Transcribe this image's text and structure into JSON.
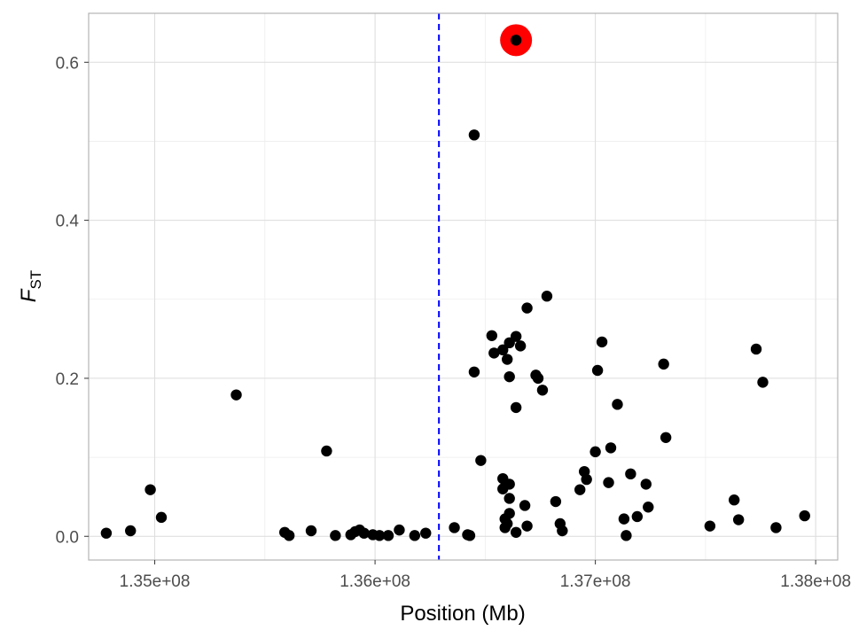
{
  "chart_data": {
    "type": "scatter",
    "xlabel": "Position (Mb)",
    "ylabel_main": "F",
    "ylabel_sub": "ST",
    "xlim": [
      134700000,
      138100000
    ],
    "ylim": [
      -0.03,
      0.662
    ],
    "x_ticks": [
      {
        "value": 135000000,
        "label": "1.35e+08"
      },
      {
        "value": 136000000,
        "label": "1.36e+08"
      },
      {
        "value": 137000000,
        "label": "1.37e+08"
      },
      {
        "value": 138000000,
        "label": "1.38e+08"
      }
    ],
    "y_ticks": [
      {
        "value": 0.0,
        "label": "0.0"
      },
      {
        "value": 0.2,
        "label": "0.2"
      },
      {
        "value": 0.4,
        "label": "0.4"
      },
      {
        "value": 0.6,
        "label": "0.6"
      }
    ],
    "grid": true,
    "vline": {
      "x": 136290000,
      "color": "#0000ff",
      "style": "dashed"
    },
    "highlight": {
      "x": 136640000,
      "y": 0.628,
      "color": "#ff0000"
    },
    "point_color": "#000000",
    "points": [
      [
        134780000,
        0.004
      ],
      [
        134890000,
        0.007
      ],
      [
        134980000,
        0.059
      ],
      [
        135030000,
        0.024
      ],
      [
        135370000,
        0.179
      ],
      [
        135590000,
        0.005
      ],
      [
        135610000,
        0.001
      ],
      [
        135710000,
        0.007
      ],
      [
        135780000,
        0.108
      ],
      [
        135820000,
        0.001
      ],
      [
        135890000,
        0.002
      ],
      [
        135910000,
        0.006
      ],
      [
        135930000,
        0.008
      ],
      [
        135950000,
        0.004
      ],
      [
        135990000,
        0.002
      ],
      [
        136020000,
        0.001
      ],
      [
        136060000,
        0.001
      ],
      [
        136110000,
        0.008
      ],
      [
        136180000,
        0.001
      ],
      [
        136230000,
        0.004
      ],
      [
        136360000,
        0.011
      ],
      [
        136420000,
        0.002
      ],
      [
        136430000,
        0.001
      ],
      [
        136450000,
        0.508
      ],
      [
        136450000,
        0.208
      ],
      [
        136480000,
        0.096
      ],
      [
        136530000,
        0.254
      ],
      [
        136540000,
        0.232
      ],
      [
        136580000,
        0.236
      ],
      [
        136600000,
        0.224
      ],
      [
        136610000,
        0.245
      ],
      [
        136610000,
        0.202
      ],
      [
        136580000,
        0.073
      ],
      [
        136580000,
        0.06
      ],
      [
        136610000,
        0.066
      ],
      [
        136610000,
        0.048
      ],
      [
        136590000,
        0.022
      ],
      [
        136610000,
        0.029
      ],
      [
        136600000,
        0.016
      ],
      [
        136590000,
        0.011
      ],
      [
        136640000,
        0.253
      ],
      [
        136640000,
        0.163
      ],
      [
        136660000,
        0.241
      ],
      [
        136640000,
        0.005
      ],
      [
        136690000,
        0.289
      ],
      [
        136680000,
        0.039
      ],
      [
        136690000,
        0.013
      ],
      [
        136730000,
        0.204
      ],
      [
        136740000,
        0.2
      ],
      [
        136760000,
        0.185
      ],
      [
        136780000,
        0.304
      ],
      [
        136820000,
        0.044
      ],
      [
        136840000,
        0.016
      ],
      [
        136850000,
        0.007
      ],
      [
        136930000,
        0.059
      ],
      [
        136950000,
        0.082
      ],
      [
        136960000,
        0.072
      ],
      [
        137000000,
        0.107
      ],
      [
        137010000,
        0.21
      ],
      [
        137030000,
        0.246
      ],
      [
        137060000,
        0.068
      ],
      [
        137070000,
        0.112
      ],
      [
        137100000,
        0.167
      ],
      [
        137130000,
        0.022
      ],
      [
        137140000,
        0.001
      ],
      [
        137160000,
        0.079
      ],
      [
        137190000,
        0.025
      ],
      [
        137230000,
        0.066
      ],
      [
        137240000,
        0.037
      ],
      [
        137310000,
        0.218
      ],
      [
        137320000,
        0.125
      ],
      [
        137520000,
        0.013
      ],
      [
        137630000,
        0.046
      ],
      [
        137650000,
        0.021
      ],
      [
        137730000,
        0.237
      ],
      [
        137760000,
        0.195
      ],
      [
        137820000,
        0.011
      ],
      [
        137950000,
        0.026
      ]
    ]
  }
}
